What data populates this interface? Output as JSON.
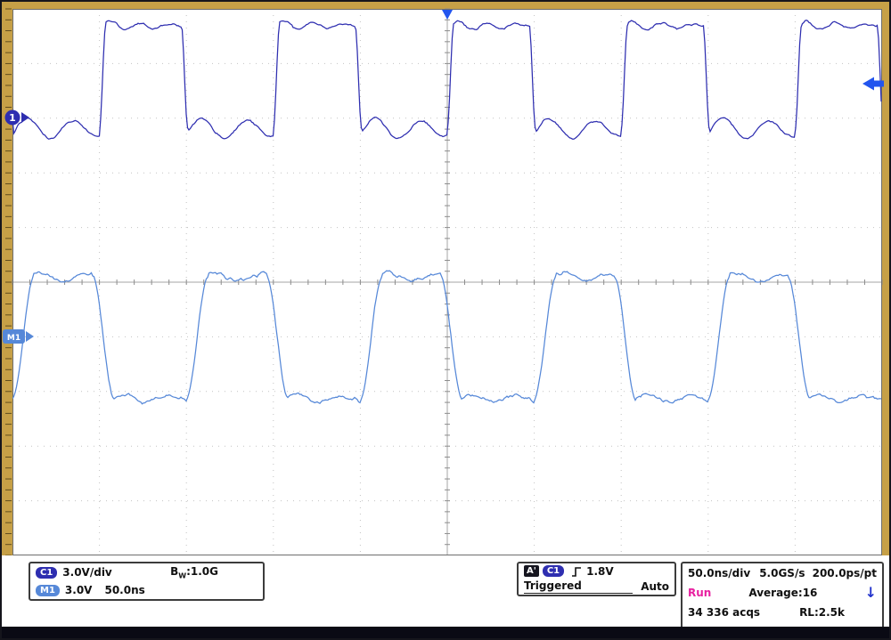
{
  "scope": {
    "left_readout": {
      "ch1_badge": "C1",
      "ch1_scale": "3.0V/div",
      "bw_prefix": "B",
      "bw_sub": "W",
      "bw_value": ":1.0G",
      "m1_badge": "M1",
      "m1_scale": "3.0V",
      "m1_time": "50.0ns"
    },
    "trigger_readout": {
      "a_badge": "A'",
      "source_badge": "C1",
      "slope_icon": "rising-edge",
      "level": "1.8V",
      "status": "Triggered",
      "mode": "Auto"
    },
    "horizontal_readout": {
      "timebase": "50.0ns/div",
      "sample_rate": "5.0GS/s",
      "resolution": "200.0ps/pt",
      "run_state": "Run",
      "average": "Average:16",
      "acqs": "34 336 acqs",
      "record_length": "RL:2.5k"
    },
    "markers": {
      "ch1_label": "1",
      "m1_label": "M1"
    },
    "colors": {
      "ch1_trace": "#2E2EB0",
      "m1_trace": "#5688D8",
      "run_state": "#E820A0",
      "frame_gold": "#C6A047",
      "trigger_marker": "#2255EE"
    }
  },
  "chart_data": {
    "type": "line",
    "title": "Oscilloscope acquisition: C1 and M1 square waves",
    "x_units": "time, 50.0ns/div (10 divisions)",
    "y_units": "volts, 3.0V/div",
    "signal_period": "100ns (2 divisions, ~10MHz square wave)",
    "grid": {
      "h_divs": 10,
      "v_divs": 10
    },
    "series": [
      {
        "name": "C1",
        "color": "#2E2EB0",
        "width": 1.25,
        "synth": {
          "period": 195.2,
          "edge_x": 109.6,
          "high_len": 92,
          "rise": 7,
          "y_high": 27,
          "y_low": 143,
          "ring_high": {
            "amp": 6,
            "decay": 70,
            "period": 33,
            "phase": 0.5
          },
          "ring_low": {
            "amp": 13,
            "decay": 200,
            "period": 52,
            "phase": -0.3
          },
          "noise": 1.3,
          "seed": 1
        }
      },
      {
        "name": "M1",
        "color": "#5688D8",
        "width": 1.25,
        "synth": {
          "period": 195.2,
          "edge_x": 12,
          "high_len": 90,
          "rise": 24,
          "y_high": 309,
          "y_low": 446,
          "ring_high": {
            "amp": 5,
            "decay": 150,
            "period": 56,
            "phase": 0.9
          },
          "ring_low": {
            "amp": 5,
            "decay": 150,
            "period": 50,
            "phase": 0.2
          },
          "noise": 2.0,
          "seed": 2
        }
      }
    ]
  }
}
